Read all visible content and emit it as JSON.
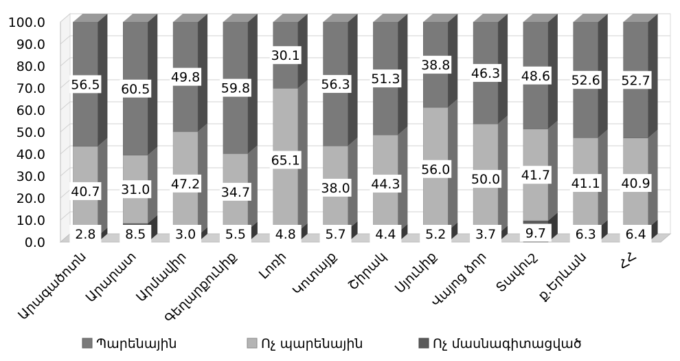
{
  "chart_data": {
    "type": "bar",
    "stacked": true,
    "categories": [
      "Արագածոտն",
      "Արարատ",
      "Արմավիր",
      "Գեղարքունիք",
      "Լոռի",
      "Կոտայք",
      "Շիրակ",
      "Սյունիք",
      "Վայոց ձոր",
      "Տավուշ",
      "ք.Երևան",
      "ՀՀ"
    ],
    "series": [
      {
        "name": "Ոչ մասնագիտացված",
        "color": "#5a5a5a",
        "values": [
          2.8,
          8.5,
          3.0,
          5.5,
          4.8,
          5.7,
          4.4,
          5.2,
          3.7,
          9.7,
          6.3,
          6.4
        ]
      },
      {
        "name": "Ոչ պարենային",
        "color": "#b4b4b4",
        "values": [
          40.7,
          31.0,
          47.2,
          34.7,
          65.1,
          38.0,
          44.3,
          56.0,
          50.0,
          41.7,
          41.1,
          40.9
        ]
      },
      {
        "name": "Պարենային",
        "color": "#7a7a7a",
        "values": [
          56.5,
          60.5,
          49.8,
          59.8,
          30.1,
          56.3,
          51.3,
          38.8,
          46.3,
          48.6,
          52.6,
          52.7
        ]
      }
    ],
    "data_labels": [
      [
        "2.8",
        "8.5",
        "3.0",
        "5.5",
        "4.8",
        "5.7",
        "4.4",
        "5.2",
        "3.7",
        "9.7",
        "6.3",
        "6.4"
      ],
      [
        "40.7",
        "31.0",
        "47.2",
        "34.7",
        "65.1",
        "38.0",
        "44.3",
        "56.0",
        "50.0",
        "41.7",
        "41.1",
        "40.9"
      ],
      [
        "56.5",
        "60.5",
        "49.8",
        "59.8",
        "30.1",
        "56.3",
        "51.3",
        "38.8",
        "46.3",
        "48.6",
        "52.6",
        "52.7"
      ]
    ],
    "y_ticks": [
      "0.0",
      "10.0",
      "20.0",
      "30.0",
      "40.0",
      "50.0",
      "60.0",
      "70.0",
      "80.0",
      "90.0",
      "100.0"
    ],
    "ylim": [
      0,
      100
    ],
    "grid": true,
    "legend": {
      "placement": "bottom",
      "order": [
        "Պարենային",
        "Ոչ պարենային",
        "Ոչ մասնագիտացված"
      ]
    },
    "title": "",
    "xlabel": "",
    "ylabel": ""
  }
}
